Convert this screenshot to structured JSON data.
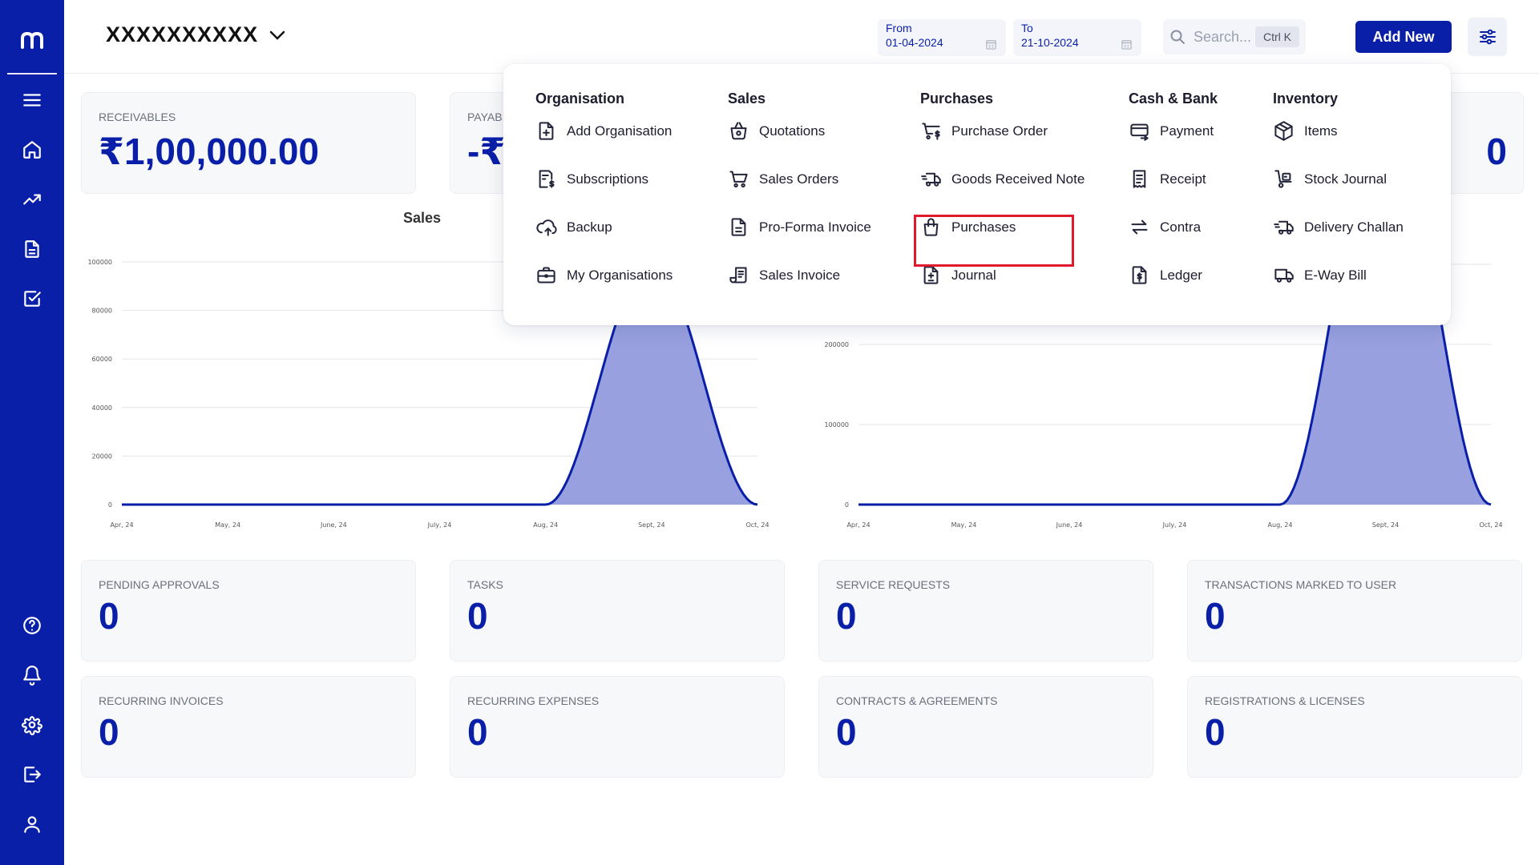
{
  "sidebar": {
    "logo_alt": "m",
    "items": [
      "menu",
      "home",
      "trending",
      "documents",
      "tasks",
      "help",
      "notifications",
      "settings",
      "logout",
      "profile"
    ]
  },
  "header": {
    "org_name": "XXXXXXXXXX",
    "from_label": "From",
    "from_value": "01-04-2024",
    "to_label": "To",
    "to_value": "21-10-2024",
    "search_placeholder": "Search...",
    "search_shortcut": "Ctrl K",
    "add_new_label": "Add New"
  },
  "summary": {
    "receivables_label": "RECEIVABLES",
    "receivables_value": "₹1,00,000.00",
    "payables_label": "PAYAB",
    "payables_value": "-₹",
    "hidden_value": "0"
  },
  "charts": {
    "left_title": "Sales"
  },
  "chart_data": [
    {
      "type": "area",
      "title": "Sales",
      "x": [
        "Apr, 24",
        "May, 24",
        "June, 24",
        "July, 24",
        "Aug, 24",
        "Sept, 24",
        "Oct, 24"
      ],
      "series": [
        {
          "values": [
            0,
            0,
            0,
            0,
            0,
            100000,
            0
          ]
        }
      ],
      "ylim": [
        0,
        100000
      ],
      "yticks": [
        0,
        20000,
        40000,
        60000,
        80000,
        100000
      ],
      "grid": true,
      "color": "#0a1fa8"
    },
    {
      "type": "area",
      "title": "",
      "x": [
        "Apr, 24",
        "May, 24",
        "June, 24",
        "July, 24",
        "Aug, 24",
        "Sept, 24",
        "Oct, 24"
      ],
      "series": [
        {
          "values": [
            0,
            0,
            0,
            0,
            0,
            500000,
            0
          ]
        }
      ],
      "ylim": [
        0,
        500000
      ],
      "yticks": [
        0,
        100000,
        200000,
        300000
      ],
      "grid": true,
      "color": "#0a1fa8"
    }
  ],
  "cards": [
    {
      "label": "PENDING APPROVALS",
      "value": "0"
    },
    {
      "label": "TASKS",
      "value": "0"
    },
    {
      "label": "SERVICE REQUESTS",
      "value": "0"
    },
    {
      "label": "TRANSACTIONS MARKED TO USER",
      "value": "0"
    },
    {
      "label": "RECURRING INVOICES",
      "value": "0"
    },
    {
      "label": "RECURRING EXPENSES",
      "value": "0"
    },
    {
      "label": "CONTRACTS & AGREEMENTS",
      "value": "0"
    },
    {
      "label": "REGISTRATIONS & LICENSES",
      "value": "0"
    }
  ],
  "menu": {
    "columns": [
      {
        "title": "Organisation",
        "items": [
          {
            "label": "Add Organisation",
            "icon": "file-plus-icon"
          },
          {
            "label": "Subscriptions",
            "icon": "receipt-dollar-icon"
          },
          {
            "label": "Backup",
            "icon": "cloud-upload-icon"
          },
          {
            "label": "My Organisations",
            "icon": "briefcase-icon"
          }
        ]
      },
      {
        "title": "Sales",
        "items": [
          {
            "label": "Quotations",
            "icon": "basket-icon"
          },
          {
            "label": "Sales Orders",
            "icon": "cart-icon"
          },
          {
            "label": "Pro-Forma Invoice",
            "icon": "document-icon"
          },
          {
            "label": "Sales Invoice",
            "icon": "scroll-icon"
          }
        ]
      },
      {
        "title": "Purchases",
        "items": [
          {
            "label": "Purchase Order",
            "icon": "cart-dollar-icon"
          },
          {
            "label": "Goods Received Note",
            "icon": "truck-fast-icon"
          },
          {
            "label": "Purchases",
            "icon": "shopping-bag-icon"
          },
          {
            "label": "Journal",
            "icon": "file-plus-minus-icon"
          }
        ]
      },
      {
        "title": "Cash & Bank",
        "items": [
          {
            "label": "Payment",
            "icon": "card-transfer-icon"
          },
          {
            "label": "Receipt",
            "icon": "receipt-icon"
          },
          {
            "label": "Contra",
            "icon": "arrows-exchange-icon"
          },
          {
            "label": "Ledger",
            "icon": "file-dollar-icon"
          }
        ]
      },
      {
        "title": "Inventory",
        "items": [
          {
            "label": "Items",
            "icon": "box-icon"
          },
          {
            "label": "Stock Journal",
            "icon": "trolley-icon"
          },
          {
            "label": "Delivery Challan",
            "icon": "truck-fast-icon"
          },
          {
            "label": "E-Way Bill",
            "icon": "truck-icon"
          }
        ]
      }
    ]
  }
}
